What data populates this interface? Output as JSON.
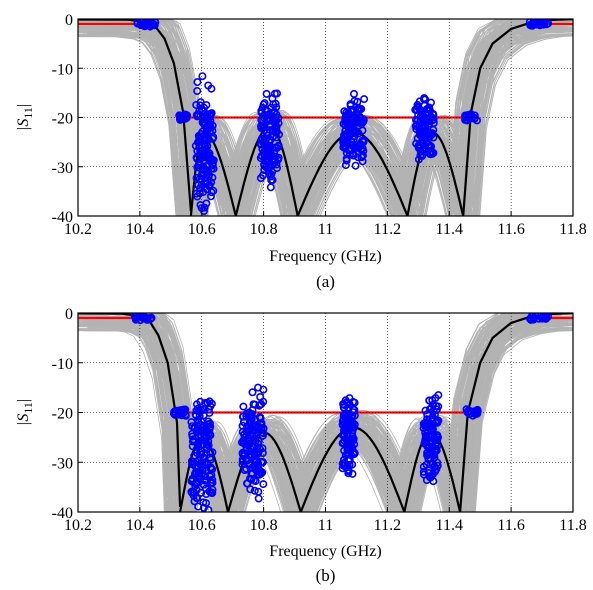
{
  "figure": {
    "panels": [
      {
        "caption": "(a)"
      },
      {
        "caption": "(b)"
      }
    ]
  },
  "chart_data": [
    {
      "type": "line",
      "panel": "(a)",
      "title": "",
      "xlabel": "Frequency (GHz)",
      "ylabel_main": "|S",
      "ylabel_sub": "11",
      "ylabel_end": "|",
      "xlim": [
        10.2,
        11.8
      ],
      "ylim": [
        -40,
        0
      ],
      "xticks": [
        10.2,
        10.4,
        10.6,
        10.8,
        11,
        11.2,
        11.4,
        11.6,
        11.8
      ],
      "xtick_labels": [
        "10.2",
        "10.4",
        "10.6",
        "10.8",
        "11",
        "11.2",
        "11.4",
        "11.6",
        "11.8"
      ],
      "yticks": [
        0,
        -10,
        -20,
        -30,
        -40
      ],
      "ytick_labels": [
        "0",
        "-10",
        "-20",
        "-30",
        "-40"
      ],
      "grid": true,
      "colors": {
        "monte_carlo": "#b3b3b3",
        "nominal": "#000000",
        "specification": "#ff0000",
        "samples": "#0000ff"
      },
      "nominal_response": {
        "poles": [
          10.565,
          10.71,
          10.91,
          11.265,
          11.445
        ],
        "dips": [
          {
            "x": 10.565,
            "y": -39
          },
          {
            "x": 10.605,
            "y": -23
          },
          {
            "x": 10.82,
            "y": -22
          },
          {
            "x": 11.09,
            "y": -23
          },
          {
            "x": 11.345,
            "y": -23
          }
        ],
        "left_edge": [
          [
            10.42,
            -0.6
          ],
          [
            10.45,
            -1.5
          ],
          [
            10.48,
            -4
          ],
          [
            10.51,
            -9
          ],
          [
            10.54,
            -19
          ]
        ],
        "right_edge": [
          [
            11.47,
            -19
          ],
          [
            11.5,
            -10
          ],
          [
            11.54,
            -5
          ],
          [
            11.6,
            -2
          ],
          [
            11.66,
            -0.8
          ],
          [
            11.72,
            -0.2
          ]
        ]
      },
      "specification": {
        "stopband_left": {
          "x": [
            10.2,
            10.45
          ],
          "y": -1
        },
        "passband": {
          "x": [
            10.55,
            11.45
          ],
          "y": -20
        },
        "stopband_right": {
          "x": [
            11.65,
            11.8
          ],
          "y": -1
        }
      },
      "sample_clusters": [
        {
          "x_center": 10.42,
          "x_spread": 0.03,
          "y_min": -1.6,
          "y_max": -0.4,
          "n": 26
        },
        {
          "x_center": 10.535,
          "x_spread": 0.02,
          "y_min": -20.8,
          "y_max": -19.2,
          "n": 22
        },
        {
          "x_center": 10.61,
          "x_spread": 0.03,
          "y_min": -40,
          "y_max": -11,
          "n": 150
        },
        {
          "x_center": 10.82,
          "x_spread": 0.03,
          "y_min": -35,
          "y_max": -14,
          "n": 130
        },
        {
          "x_center": 11.09,
          "x_spread": 0.035,
          "y_min": -31,
          "y_max": -15,
          "n": 120
        },
        {
          "x_center": 11.32,
          "x_spread": 0.03,
          "y_min": -29,
          "y_max": -15,
          "n": 110
        },
        {
          "x_center": 11.47,
          "x_spread": 0.02,
          "y_min": -20.8,
          "y_max": -19.2,
          "n": 22
        },
        {
          "x_center": 11.69,
          "x_spread": 0.03,
          "y_min": -1.6,
          "y_max": -0.4,
          "n": 26
        }
      ]
    },
    {
      "type": "line",
      "panel": "(b)",
      "title": "",
      "xlabel": "Frequency (GHz)",
      "ylabel_main": "|S",
      "ylabel_sub": "11",
      "ylabel_end": "|",
      "xlim": [
        10.2,
        11.8
      ],
      "ylim": [
        -40,
        0
      ],
      "xticks": [
        10.2,
        10.4,
        10.6,
        10.8,
        11,
        11.2,
        11.4,
        11.6,
        11.8
      ],
      "xtick_labels": [
        "10.2",
        "10.4",
        "10.6",
        "10.8",
        "11",
        "11.2",
        "11.4",
        "11.6",
        "11.8"
      ],
      "yticks": [
        0,
        -10,
        -20,
        -30,
        -40
      ],
      "ytick_labels": [
        "0",
        "-10",
        "-20",
        "-30",
        "-40"
      ],
      "grid": true,
      "colors": {
        "monte_carlo": "#b3b3b3",
        "nominal": "#000000",
        "specification": "#ff0000",
        "samples": "#0000ff"
      },
      "nominal_response": {
        "poles": [
          10.53,
          10.685,
          10.92,
          11.255,
          11.435
        ],
        "dips": [
          {
            "x": 10.53,
            "y": -39
          },
          {
            "x": 10.6,
            "y": -25
          },
          {
            "x": 10.8,
            "y": -24
          },
          {
            "x": 11.09,
            "y": -23
          },
          {
            "x": 11.34,
            "y": -24
          }
        ],
        "left_edge": [
          [
            10.4,
            -0.6
          ],
          [
            10.43,
            -1.5
          ],
          [
            10.46,
            -4.5
          ],
          [
            10.49,
            -10
          ],
          [
            10.52,
            -22
          ]
        ],
        "right_edge": [
          [
            11.46,
            -20
          ],
          [
            11.5,
            -10
          ],
          [
            11.54,
            -5
          ],
          [
            11.6,
            -2
          ],
          [
            11.66,
            -0.8
          ],
          [
            11.72,
            -0.2
          ]
        ]
      },
      "specification": {
        "stopband_left": {
          "x": [
            10.2,
            10.45
          ],
          "y": -1
        },
        "passband": {
          "x": [
            10.55,
            11.45
          ],
          "y": -20
        },
        "stopband_right": {
          "x": [
            11.65,
            11.8
          ],
          "y": -1
        }
      },
      "sample_clusters": [
        {
          "x_center": 10.41,
          "x_spread": 0.03,
          "y_min": -1.6,
          "y_max": -0.4,
          "n": 24
        },
        {
          "x_center": 10.53,
          "x_spread": 0.02,
          "y_min": -20.8,
          "y_max": -19.2,
          "n": 22
        },
        {
          "x_center": 10.6,
          "x_spread": 0.035,
          "y_min": -40,
          "y_max": -15,
          "n": 150
        },
        {
          "x_center": 10.765,
          "x_spread": 0.035,
          "y_min": -38,
          "y_max": -14,
          "n": 140
        },
        {
          "x_center": 11.075,
          "x_spread": 0.02,
          "y_min": -33,
          "y_max": -16,
          "n": 110
        },
        {
          "x_center": 11.34,
          "x_spread": 0.025,
          "y_min": -35,
          "y_max": -15,
          "n": 110
        },
        {
          "x_center": 11.475,
          "x_spread": 0.02,
          "y_min": -20.8,
          "y_max": -19.2,
          "n": 22
        },
        {
          "x_center": 11.69,
          "x_spread": 0.03,
          "y_min": -1.6,
          "y_max": -0.4,
          "n": 24
        }
      ]
    }
  ]
}
